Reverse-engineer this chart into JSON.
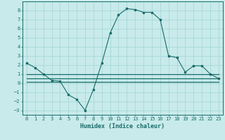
{
  "xlabel": "Humidex (Indice chaleur)",
  "background_color": "#c8eaea",
  "grid_color": "#a8d8d8",
  "line_color": "#1a6b6b",
  "xlim": [
    -0.5,
    23.5
  ],
  "ylim": [
    -3.5,
    9.0
  ],
  "xticks": [
    0,
    1,
    2,
    3,
    4,
    5,
    6,
    7,
    8,
    9,
    10,
    11,
    12,
    13,
    14,
    15,
    16,
    17,
    18,
    19,
    20,
    21,
    22,
    23
  ],
  "yticks": [
    -3,
    -2,
    -1,
    0,
    1,
    2,
    3,
    4,
    5,
    6,
    7,
    8
  ],
  "curve1_x": [
    0,
    1,
    2,
    3,
    4,
    5,
    6,
    7,
    8,
    9,
    10,
    11,
    12,
    13,
    14,
    15,
    16,
    17,
    18,
    19,
    20,
    21,
    22,
    23
  ],
  "curve1_y": [
    2.2,
    1.7,
    1.0,
    0.3,
    0.2,
    -1.3,
    -1.8,
    -3.0,
    -0.7,
    2.2,
    5.5,
    7.5,
    8.2,
    8.1,
    7.8,
    7.8,
    7.0,
    3.0,
    2.8,
    1.2,
    1.9,
    1.9,
    1.0,
    0.5
  ],
  "curve2_x": [
    0,
    1,
    2,
    3,
    4,
    5,
    6,
    7,
    8,
    9,
    10,
    11,
    12,
    13,
    14,
    15,
    16,
    17,
    18,
    19,
    20,
    21,
    22,
    23
  ],
  "curve2_y": [
    1.0,
    1.0,
    1.0,
    1.0,
    1.0,
    1.0,
    1.0,
    1.0,
    1.0,
    1.0,
    1.0,
    1.0,
    1.0,
    1.0,
    1.0,
    1.0,
    1.0,
    1.0,
    1.0,
    1.0,
    1.0,
    1.0,
    1.0,
    1.0
  ],
  "curve3_x": [
    0,
    1,
    2,
    3,
    4,
    5,
    6,
    7,
    8,
    9,
    10,
    11,
    12,
    13,
    14,
    15,
    16,
    17,
    18,
    19,
    20,
    21,
    22,
    23
  ],
  "curve3_y": [
    0.5,
    0.5,
    0.5,
    0.5,
    0.5,
    0.5,
    0.5,
    0.5,
    0.5,
    0.5,
    0.5,
    0.5,
    0.5,
    0.5,
    0.5,
    0.5,
    0.5,
    0.5,
    0.5,
    0.5,
    0.5,
    0.5,
    0.5,
    0.5
  ],
  "curve4_x": [
    0,
    1,
    2,
    3,
    4,
    5,
    6,
    7,
    8,
    9,
    10,
    11,
    12,
    13,
    14,
    15,
    16,
    17,
    18,
    19,
    20,
    21,
    22,
    23
  ],
  "curve4_y": [
    0.1,
    0.1,
    0.1,
    0.1,
    0.1,
    0.1,
    0.1,
    0.1,
    0.1,
    0.1,
    0.1,
    0.1,
    0.1,
    0.1,
    0.1,
    0.1,
    0.1,
    0.1,
    0.1,
    0.1,
    0.1,
    0.1,
    0.1,
    0.1
  ],
  "tick_fontsize": 5,
  "xlabel_fontsize": 6
}
